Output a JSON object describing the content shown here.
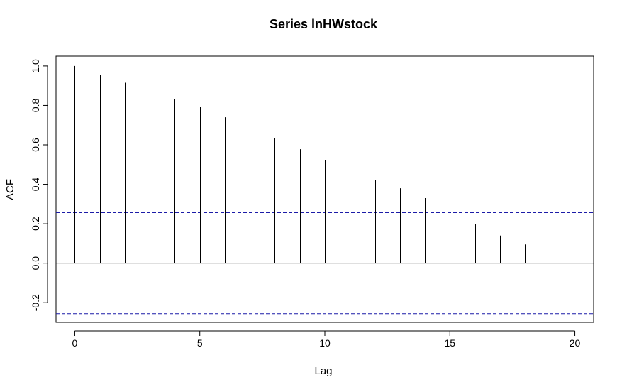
{
  "chart_data": {
    "type": "bar",
    "title": "Series  lnHWstock",
    "xlabel": "Lag",
    "ylabel": "ACF",
    "xlim": [
      -0.75,
      20.75
    ],
    "ylim": [
      -0.3,
      1.05
    ],
    "x_ticks": [
      0,
      5,
      10,
      15,
      20
    ],
    "x_tick_labels": [
      "0",
      "5",
      "10",
      "15",
      "20"
    ],
    "y_ticks": [
      -0.2,
      0.0,
      0.2,
      0.4,
      0.6,
      0.8,
      1.0
    ],
    "y_tick_labels": [
      "-0.2",
      "0.0",
      "0.2",
      "0.4",
      "0.6",
      "0.8",
      "1.0"
    ],
    "lags": [
      0,
      1,
      2,
      3,
      4,
      5,
      6,
      7,
      8,
      9,
      10,
      11,
      12,
      13,
      14,
      15,
      16,
      17,
      18,
      19
    ],
    "acf": [
      1.0,
      0.955,
      0.915,
      0.872,
      0.832,
      0.792,
      0.74,
      0.687,
      0.635,
      0.578,
      0.523,
      0.472,
      0.422,
      0.38,
      0.33,
      0.26,
      0.2,
      0.14,
      0.095,
      0.05
    ],
    "confidence_bound": 0.256,
    "colors": {
      "spikes": "#000000",
      "confidence": "#1c1ca8",
      "zero_line": "#000000"
    }
  }
}
